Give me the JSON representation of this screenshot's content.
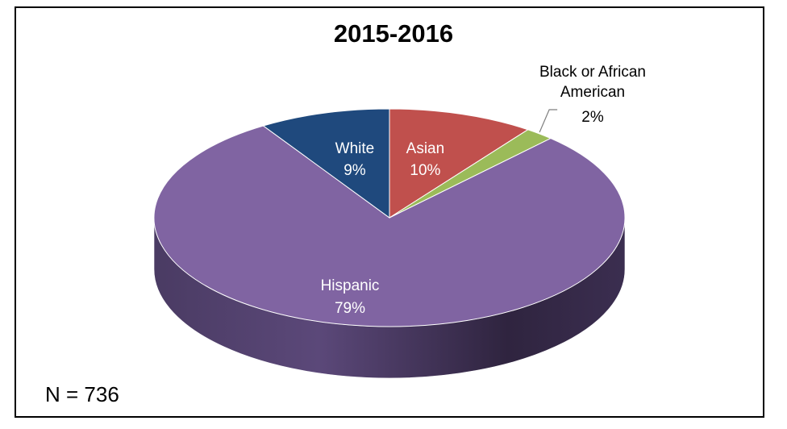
{
  "chart_data": {
    "type": "pie",
    "title": "2015-2016",
    "three_d": true,
    "slices": [
      {
        "name": "Asian",
        "percent": 10,
        "label": "10%",
        "color": "#c0504d",
        "label_color": "#ffffff"
      },
      {
        "name": "Black or African American",
        "percent": 2,
        "label": "2%",
        "color": "#9bbb59",
        "label_color": "#000000"
      },
      {
        "name": "Hispanic",
        "percent": 79,
        "label": "79%",
        "color": "#8064a2",
        "label_color": "#ffffff"
      },
      {
        "name": "White",
        "percent": 9,
        "label": "9%",
        "color": "#1f497d",
        "label_color": "#ffffff"
      }
    ],
    "legend": "none",
    "annotation": "N = 736"
  }
}
